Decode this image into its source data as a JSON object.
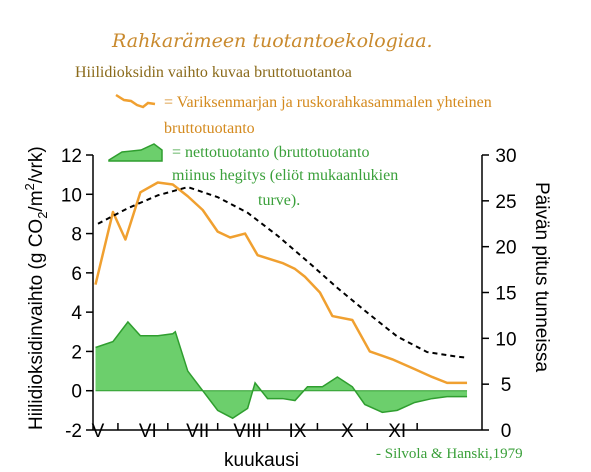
{
  "title": "Rahkarämeen tuotantoekologiaa.",
  "subtitle": "Hiilidioksidin vaihto kuvaa bruttotuotantoa",
  "legend": {
    "gross_line1": "= Variksenmarjan ja ruskorahkasammalen yhteinen",
    "gross_line2": "bruttotuotanto",
    "net_line1": "= nettotuotanto (bruttotuotanto",
    "net_line2": "miinus hegitys (eliöt mukaanlukien",
    "net_line3": "turve)."
  },
  "source": "- Silvola & Hanski,1979",
  "colors": {
    "gross": "#f0a030",
    "net_fill": "#6ccf6c",
    "net_stroke": "#2f9e2f",
    "daylength": "#000000",
    "title": "#c98a2e",
    "subtitle": "#8a6a1a",
    "legend_gross_text": "#d48a1e",
    "legend_net_text": "#3aa03a"
  },
  "chart_data": {
    "type": "line",
    "xlabel": "kuukausi",
    "ylabel": "Hiilidioksidinvaihto (g CO²/m²/vrk)",
    "ylabel_parts": {
      "main": "Hiilidioksidinvaihto (g CO",
      "sub2": "2",
      "mid": "/m",
      "sup2": "2",
      "end": "/vrk)"
    },
    "y2label": "Päivän pitus tunneissa",
    "ylim": [
      -2,
      12
    ],
    "y2lim": [
      0,
      30
    ],
    "yticks": [
      "-2",
      "0",
      "2",
      "4",
      "6",
      "8",
      "10",
      "12"
    ],
    "y2ticks": [
      "0",
      "5",
      "10",
      "15",
      "20",
      "25",
      "30"
    ],
    "xlim": [
      4.5,
      12.3
    ],
    "months": [
      "V",
      "VI",
      "VII",
      "VIII",
      "IX",
      "X",
      "XI"
    ],
    "grid": false,
    "series": [
      {
        "key": "gross",
        "axis": "left",
        "style": "line",
        "x": [
          4.55,
          4.9,
          5.15,
          5.45,
          5.8,
          6.1,
          6.4,
          6.7,
          7.0,
          7.25,
          7.55,
          7.8,
          8.3,
          8.55,
          8.75,
          9.05,
          9.3,
          9.7,
          10.05,
          10.5,
          10.95,
          11.3,
          11.6,
          12.0
        ],
        "y": [
          5.4,
          9.1,
          7.7,
          10.1,
          10.6,
          10.5,
          9.9,
          9.2,
          8.1,
          7.8,
          8.0,
          6.9,
          6.5,
          6.2,
          5.8,
          5.0,
          3.8,
          3.6,
          2.0,
          1.6,
          1.1,
          0.7,
          0.4,
          0.4
        ]
      },
      {
        "key": "net",
        "axis": "left",
        "style": "area",
        "x": [
          4.55,
          4.9,
          5.2,
          5.45,
          5.8,
          6.1,
          6.15,
          6.4,
          6.7,
          7.0,
          7.3,
          7.6,
          7.75,
          8.0,
          8.3,
          8.55,
          8.8,
          9.1,
          9.4,
          9.7,
          9.95,
          10.3,
          10.6,
          10.95,
          11.3,
          11.6,
          12.0
        ],
        "y": [
          2.2,
          2.5,
          3.5,
          2.8,
          2.8,
          2.9,
          3.0,
          1.0,
          0.0,
          -1.0,
          -1.4,
          -0.9,
          0.4,
          -0.4,
          -0.4,
          -0.5,
          0.2,
          0.2,
          0.7,
          0.2,
          -0.7,
          -1.1,
          -1.0,
          -0.6,
          -0.4,
          -0.3,
          -0.3
        ]
      },
      {
        "key": "daylength",
        "axis": "right",
        "style": "dashed",
        "x": [
          4.6,
          5.2,
          5.8,
          6.4,
          7.0,
          7.6,
          8.2,
          8.8,
          9.4,
          10.0,
          10.6,
          11.2,
          11.8,
          12.0
        ],
        "y": [
          22.5,
          24.2,
          25.6,
          26.5,
          25.4,
          23.7,
          21.2,
          18.4,
          15.5,
          12.8,
          10.2,
          8.5,
          8.0,
          7.9
        ]
      }
    ]
  }
}
